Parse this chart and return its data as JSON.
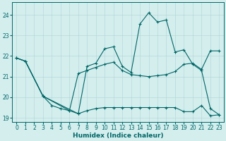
{
  "xlabel": "Humidex (Indice chaleur)",
  "background_color": "#d4eeee",
  "line_color": "#006666",
  "grid_color": "#b8d8d8",
  "xlim": [
    -0.5,
    23.5
  ],
  "ylim": [
    18.8,
    24.6
  ],
  "yticks": [
    19,
    20,
    21,
    22,
    23,
    24
  ],
  "xticks": [
    0,
    1,
    2,
    3,
    4,
    5,
    6,
    7,
    8,
    9,
    10,
    11,
    12,
    13,
    14,
    15,
    16,
    17,
    18,
    19,
    20,
    21,
    22,
    23
  ],
  "line1_x": [
    0,
    1,
    3,
    4,
    5,
    6,
    7,
    8,
    9,
    10,
    11,
    12,
    13,
    14,
    15,
    16,
    17,
    18,
    19,
    20,
    21,
    22,
    23
  ],
  "line1_y": [
    21.9,
    21.75,
    20.05,
    19.6,
    19.45,
    19.35,
    19.2,
    19.35,
    19.45,
    19.5,
    19.5,
    19.5,
    19.5,
    19.5,
    19.5,
    19.5,
    19.5,
    19.5,
    19.3,
    19.3,
    19.6,
    19.1,
    19.15
  ],
  "line2_x": [
    0,
    1,
    3,
    6,
    7,
    8,
    9,
    10,
    11,
    12,
    13,
    14,
    15,
    16,
    17,
    18,
    19,
    20,
    21,
    22,
    23
  ],
  "line2_y": [
    21.9,
    21.75,
    20.05,
    19.35,
    21.15,
    21.3,
    21.45,
    21.6,
    21.7,
    21.3,
    21.1,
    21.05,
    21.0,
    21.05,
    21.1,
    21.25,
    21.6,
    21.65,
    21.35,
    22.25,
    22.25
  ],
  "line3_x": [
    0,
    1,
    3,
    7,
    8,
    9,
    10,
    11,
    12,
    13,
    14,
    15,
    16,
    17,
    18,
    19,
    20,
    21,
    22,
    23
  ],
  "line3_y": [
    21.9,
    21.75,
    20.05,
    19.2,
    21.5,
    21.65,
    22.35,
    22.45,
    21.5,
    21.2,
    23.55,
    24.1,
    23.65,
    23.75,
    22.2,
    22.3,
    21.6,
    21.3,
    19.45,
    19.15
  ]
}
